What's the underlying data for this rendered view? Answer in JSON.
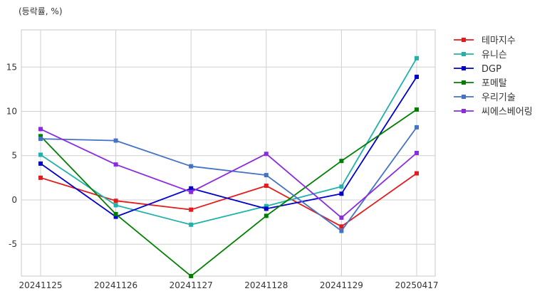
{
  "chart_data": {
    "type": "line",
    "title": "",
    "unit_label": "(등락률, %)",
    "xlabel": "",
    "ylabel": "",
    "categories": [
      "20241125",
      "20241126",
      "20241127",
      "20241128",
      "20241129",
      "20250417"
    ],
    "yticks": [
      15,
      10,
      5,
      0,
      -5
    ],
    "ytick_labels": [
      "15",
      "10",
      "5",
      "0",
      "-5"
    ],
    "ylim": [
      -8.6,
      19.2
    ],
    "grid": true,
    "legend_position": "outside-right",
    "series": [
      {
        "name": "테마지수",
        "color": "#e41a1c",
        "values": [
          2.5,
          -0.1,
          -1.1,
          1.6,
          -3.0,
          3.0
        ]
      },
      {
        "name": "유니슨",
        "color": "#20b2aa",
        "values": [
          5.1,
          -0.6,
          -2.8,
          -0.7,
          1.5,
          16.0
        ]
      },
      {
        "name": "DGP",
        "color": "#0000cd",
        "values": [
          4.1,
          -1.9,
          1.3,
          -1.0,
          0.7,
          13.9
        ]
      },
      {
        "name": "포메탈",
        "color": "#008000",
        "values": [
          7.2,
          -1.6,
          -8.6,
          -1.8,
          4.4,
          10.2
        ]
      },
      {
        "name": "우리기술",
        "color": "#4472c4",
        "values": [
          6.9,
          6.7,
          3.8,
          2.8,
          -3.5,
          8.2
        ]
      },
      {
        "name": "씨에스베어링",
        "color": "#8a2be2",
        "values": [
          8.0,
          4.0,
          0.9,
          5.2,
          -2.0,
          5.3
        ]
      }
    ]
  }
}
